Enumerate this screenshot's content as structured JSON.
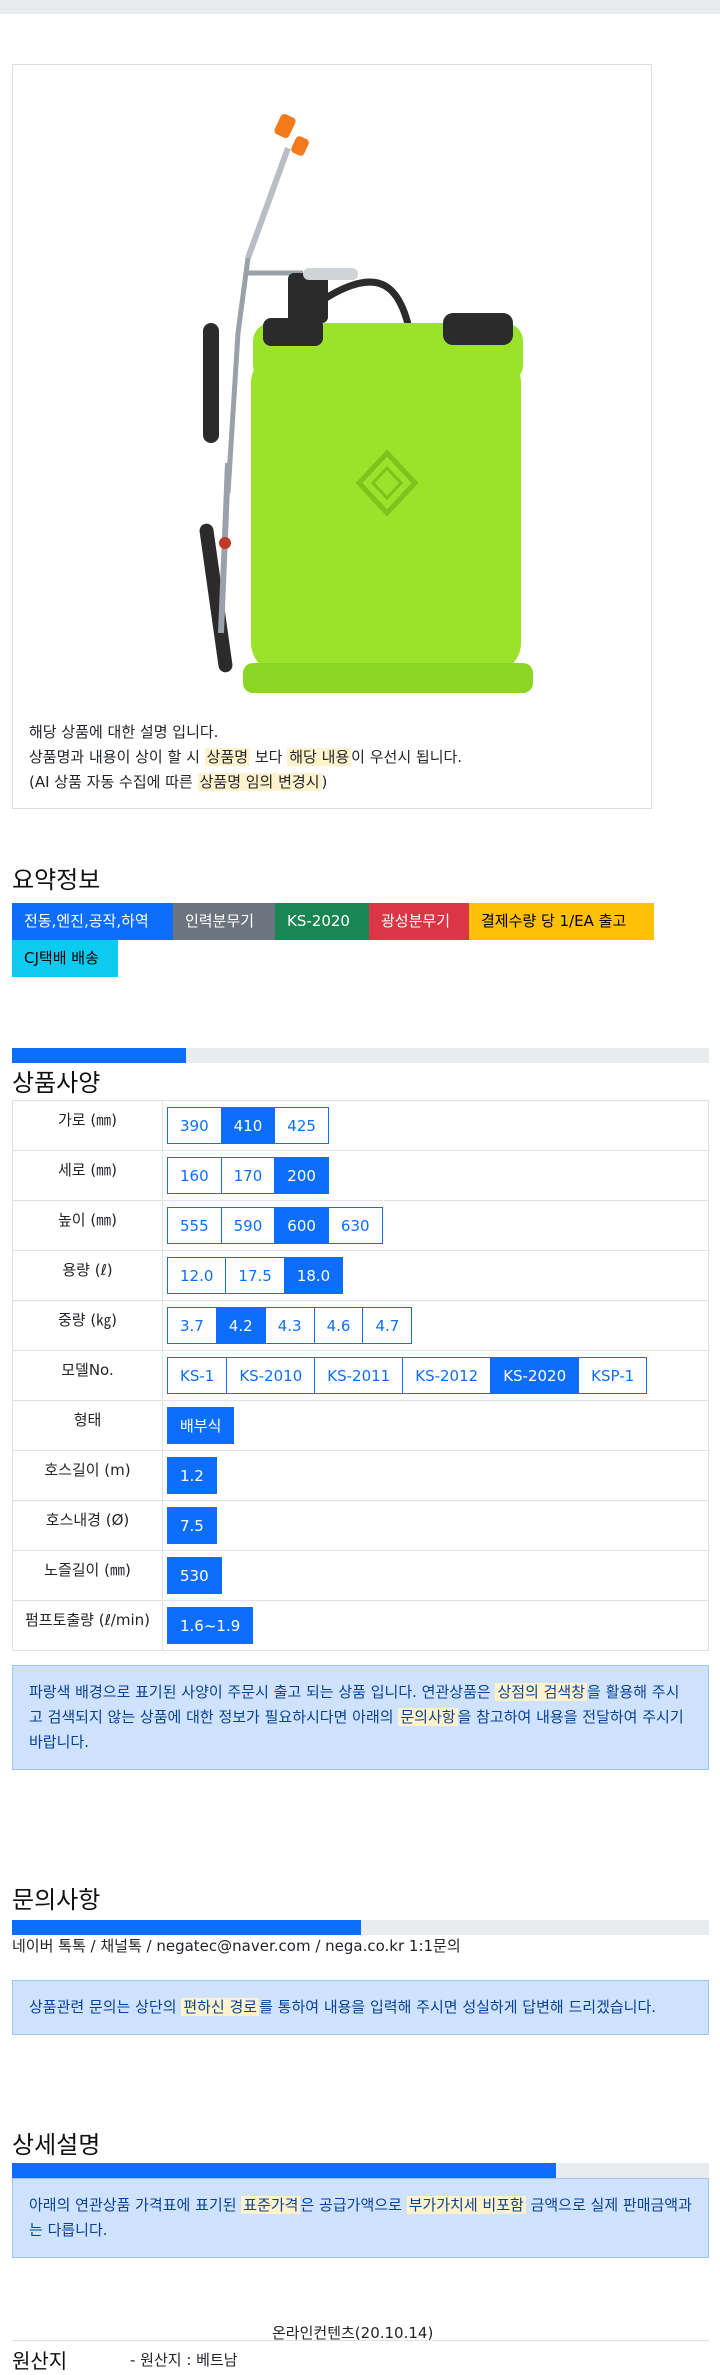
{
  "product": {
    "desc_line1": "해당 상품에 대한 설명 입니다.",
    "desc_line2_a": "상품명과 내용이 상이 할 시 ",
    "desc_line2_hl1": "상품명",
    "desc_line2_b": " 보다 ",
    "desc_line2_hl2": "해당 내용",
    "desc_line2_c": "이 우선시 됩니다.",
    "desc_line3_a": "(AI 상품 자동 수집에 따른 ",
    "desc_line3_hl": "상품명 임의 변경시",
    "desc_line3_b": ")"
  },
  "summary": {
    "title": "요약정보",
    "badges": [
      "전동,엔진,공작,하역",
      "인력분무기",
      "KS-2020",
      "광성분무기",
      "결제수량 당 1/EA 출고",
      "CJ택배 배송"
    ]
  },
  "specs": {
    "title": "상품사양",
    "progress_percent": 25,
    "rows": [
      {
        "label": "가로 (㎜)",
        "options": [
          "390",
          "410",
          "425"
        ],
        "selected": "410"
      },
      {
        "label": "세로 (㎜)",
        "options": [
          "160",
          "170",
          "200"
        ],
        "selected": "200"
      },
      {
        "label": "높이 (㎜)",
        "options": [
          "555",
          "590",
          "600",
          "630"
        ],
        "selected": "600"
      },
      {
        "label": "용량 (ℓ)",
        "options": [
          "12.0",
          "17.5",
          "18.0"
        ],
        "selected": "18.0"
      },
      {
        "label": "중량 (㎏)",
        "options": [
          "3.7",
          "4.2",
          "4.3",
          "4.6",
          "4.7"
        ],
        "selected": "4.2"
      },
      {
        "label": "모델No.",
        "options": [
          "KS-1",
          "KS-2010",
          "KS-2011",
          "KS-2012",
          "KS-2020",
          "KSP-1"
        ],
        "selected": "KS-2020"
      },
      {
        "label": "형태",
        "options": [
          "배부식"
        ],
        "selected": "배부식"
      },
      {
        "label": "호스길이 (m)",
        "options": [
          "1.2"
        ],
        "selected": "1.2"
      },
      {
        "label": "호스내경 (Ø)",
        "options": [
          "7.5"
        ],
        "selected": "7.5"
      },
      {
        "label": "노즐길이 (㎜)",
        "options": [
          "530"
        ],
        "selected": "530"
      },
      {
        "label": "펌프토출량 (ℓ/min)",
        "options": [
          "1.6~1.9"
        ],
        "selected": "1.6~1.9"
      }
    ],
    "notice_a": "파랑색 배경으로 표기된 사양이 주문시 출고 되는 상품 입니다. 연관상품은 ",
    "notice_hl1": "상점의 검색창",
    "notice_b": "을 활용해 주시고 검색되지 않는 상품에 대한 정보가 필요하시다면 아래의 ",
    "notice_hl2": "문의사항",
    "notice_c": "을 참고하여 내용을 전달하여 주시기 바랍니다."
  },
  "inquiry": {
    "title": "문의사항",
    "progress_percent": 50,
    "contacts": "네이버 톡톡  /  채널톡  /  negatec@naver.com  /  nega.co.kr 1:1문의",
    "notice_a": "상품관련 문의는 상단의 ",
    "notice_hl": "편하신 경로",
    "notice_b": "를 통하여 내용을 입력해 주시면 성실하게 답변해 드리겠습니다."
  },
  "detail": {
    "title": "상세설명",
    "progress_percent": 78,
    "notice_a": "아래의 연관상품 가격표에 표기된 ",
    "notice_hl1": "표준가격",
    "notice_b": "은 공급가액으로 ",
    "notice_hl2": "부가가치세 비포함",
    "notice_c": " 금액으로 실제 판매금액과는 다릅니다."
  },
  "footer": {
    "content_credit": "온라인컨텐츠(20.10.14)",
    "origin_label": "원산지",
    "origin_value": "- 원산지 : 베트남"
  }
}
